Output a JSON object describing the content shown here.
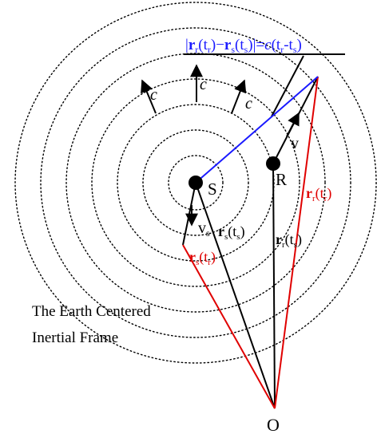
{
  "diagram": {
    "colors": {
      "black": "#000000",
      "red": "#e00000",
      "blue": "#1a1aff"
    },
    "labels": {
      "equation_bold_r1": "r",
      "equation_sub_r": "r",
      "equation_t1": "(t",
      "equation_sub_r_t": "r",
      "equation_close1": ")",
      "equation_minus": "−",
      "equation_bold_r2": "r",
      "equation_sub_s": "s",
      "equation_t2": "(t",
      "equation_sub_s_t": "s",
      "equation_close2": ")|=",
      "equation_c": "c",
      "equation_tail1": "(t",
      "equation_tail_sub_r": "r",
      "equation_tail_dash": "-t",
      "equation_tail_sub_s": "s",
      "equation_tail_close": ")",
      "c_left": "c",
      "c_center": "c",
      "c_right": "c",
      "point_s": "S",
      "point_r": "R",
      "point_o": "O",
      "v_receiver": "v",
      "v_sat": "v",
      "v_sat_sub": "s",
      "rs_ts_bold": "r",
      "rs_ts_sub": "s",
      "rs_ts_paren": "(t",
      "rs_ts_paren_sub": "s",
      "rs_ts_close": ")",
      "rs_tr_bold": "r",
      "rs_tr_sub": "s",
      "rs_tr_paren": "(t",
      "rs_tr_paren_sub": "r",
      "rs_tr_close": ")",
      "rr_ts_bold": "r",
      "rr_ts_sub": "r",
      "rr_ts_paren": "(t",
      "rr_ts_paren_sub": "s",
      "rr_ts_close": ")",
      "rr_tr_bold": "r",
      "rr_tr_sub": "r",
      "rr_tr_paren": "(t",
      "rr_tr_paren_sub": "r",
      "rr_tr_close": ")",
      "frame_line1": "The Earth Centered",
      "frame_line2": "Inertial Frame"
    }
  }
}
